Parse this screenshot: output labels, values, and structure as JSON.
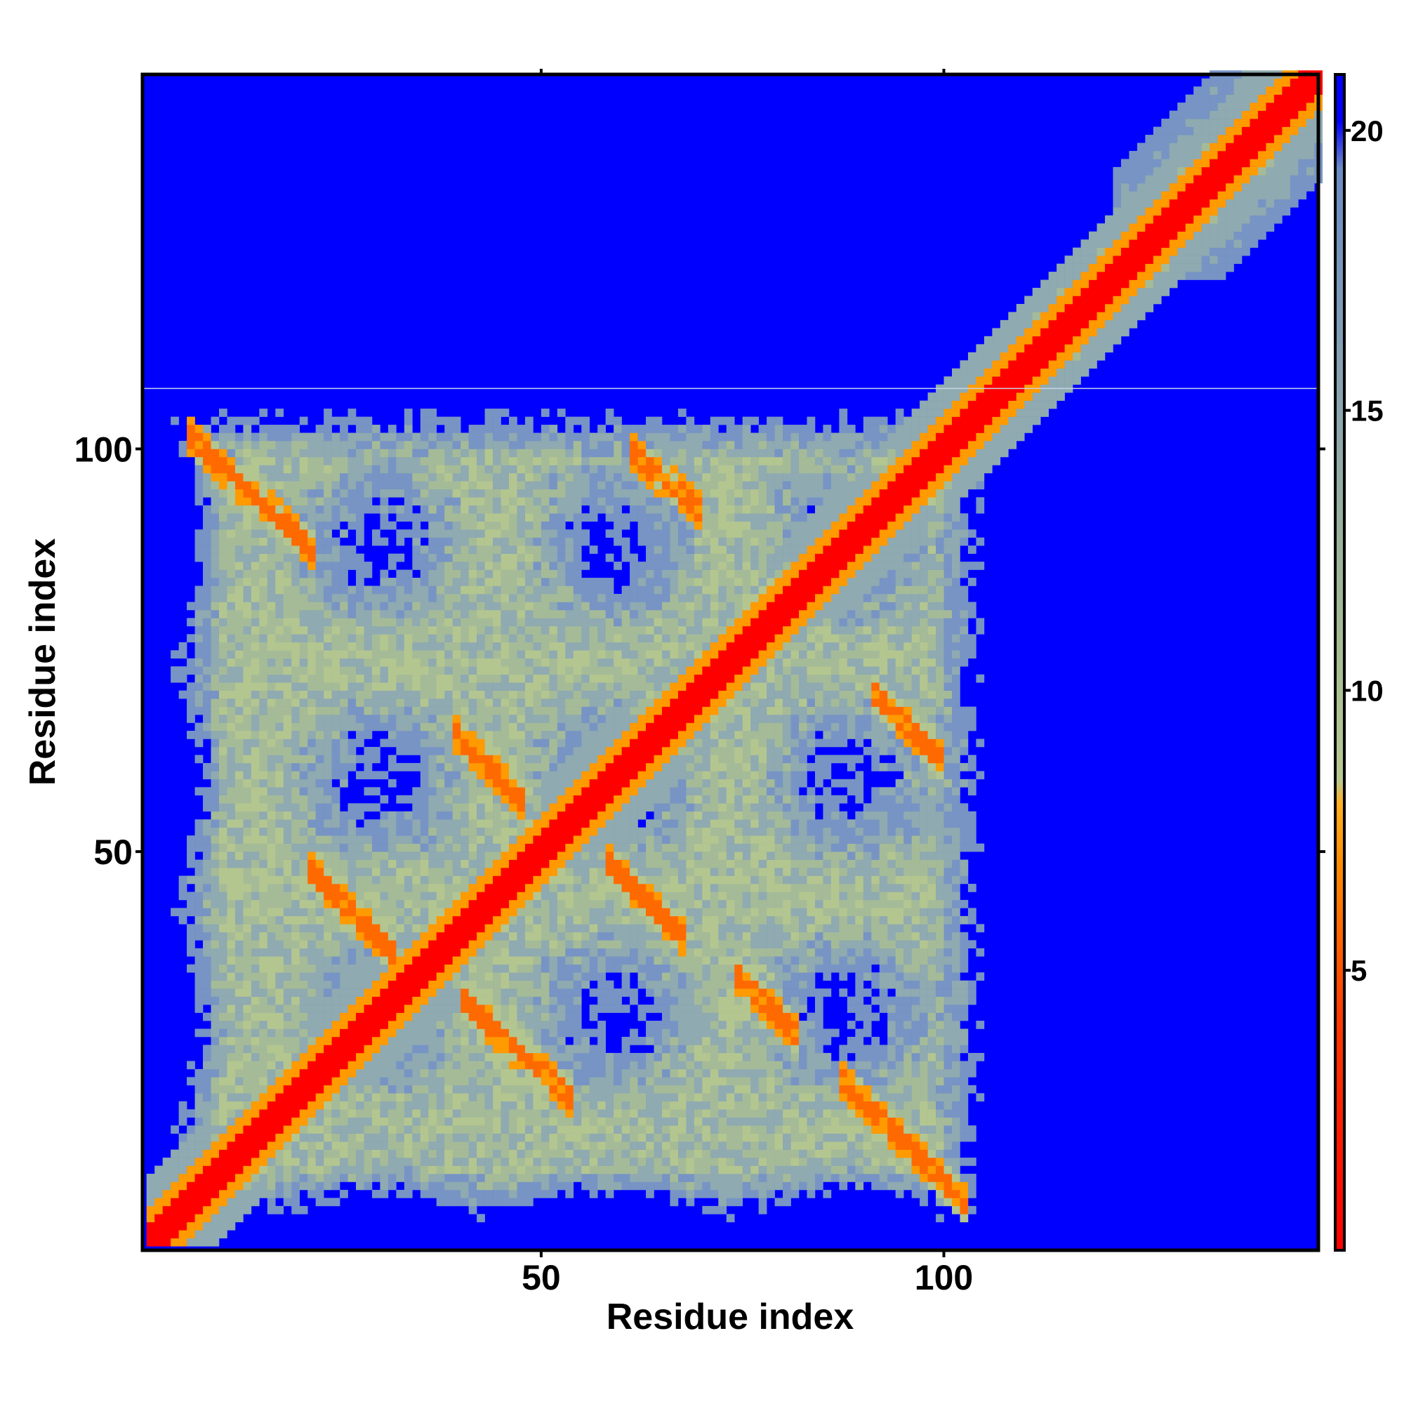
{
  "chart_data": {
    "type": "heatmap",
    "title": "",
    "xlabel": "Residue index",
    "ylabel": "Residue index",
    "x_ticks": [
      50,
      100
    ],
    "y_ticks": [
      50,
      100
    ],
    "xlim": [
      1,
      146
    ],
    "ylim": [
      1,
      146
    ],
    "contacts_extent": 106,
    "colorbar": {
      "ticks": [
        5,
        10,
        15,
        20
      ],
      "range": [
        0,
        21
      ],
      "colors": {
        "near": "#ff0000",
        "mid": "#ff8c00",
        "light": "#ffd04a",
        "sage": "#a8bf94",
        "steel": "#7d9bc0",
        "far": "#0000ff"
      }
    },
    "features": {
      "diagonal": "main diagonal of near contacts (distance < 5) over residues 1-146",
      "antiparallel_pairs": [
        {
          "i_start": 7,
          "i_end": 20,
          "j_start": 100,
          "j_end": 88
        },
        {
          "i_start": 88,
          "i_end": 101,
          "j_start": 20,
          "j_end": 7
        },
        {
          "i_start": 22,
          "i_end": 30,
          "j_start": 46,
          "j_end": 38
        },
        {
          "i_start": 40,
          "i_end": 46,
          "j_start": 63,
          "j_end": 57
        },
        {
          "i_start": 62,
          "i_end": 68,
          "j_start": 98,
          "j_end": 93
        },
        {
          "i_start": 92,
          "i_end": 98,
          "j_start": 68,
          "j_end": 62
        },
        {
          "i_start": 41,
          "i_end": 52,
          "j_start": 30,
          "j_end": 20
        },
        {
          "i_start": 59,
          "i_end": 66,
          "j_start": 47,
          "j_end": 40
        },
        {
          "i_start": 75,
          "i_end": 80,
          "j_start": 33,
          "j_end": 28
        }
      ]
    }
  }
}
